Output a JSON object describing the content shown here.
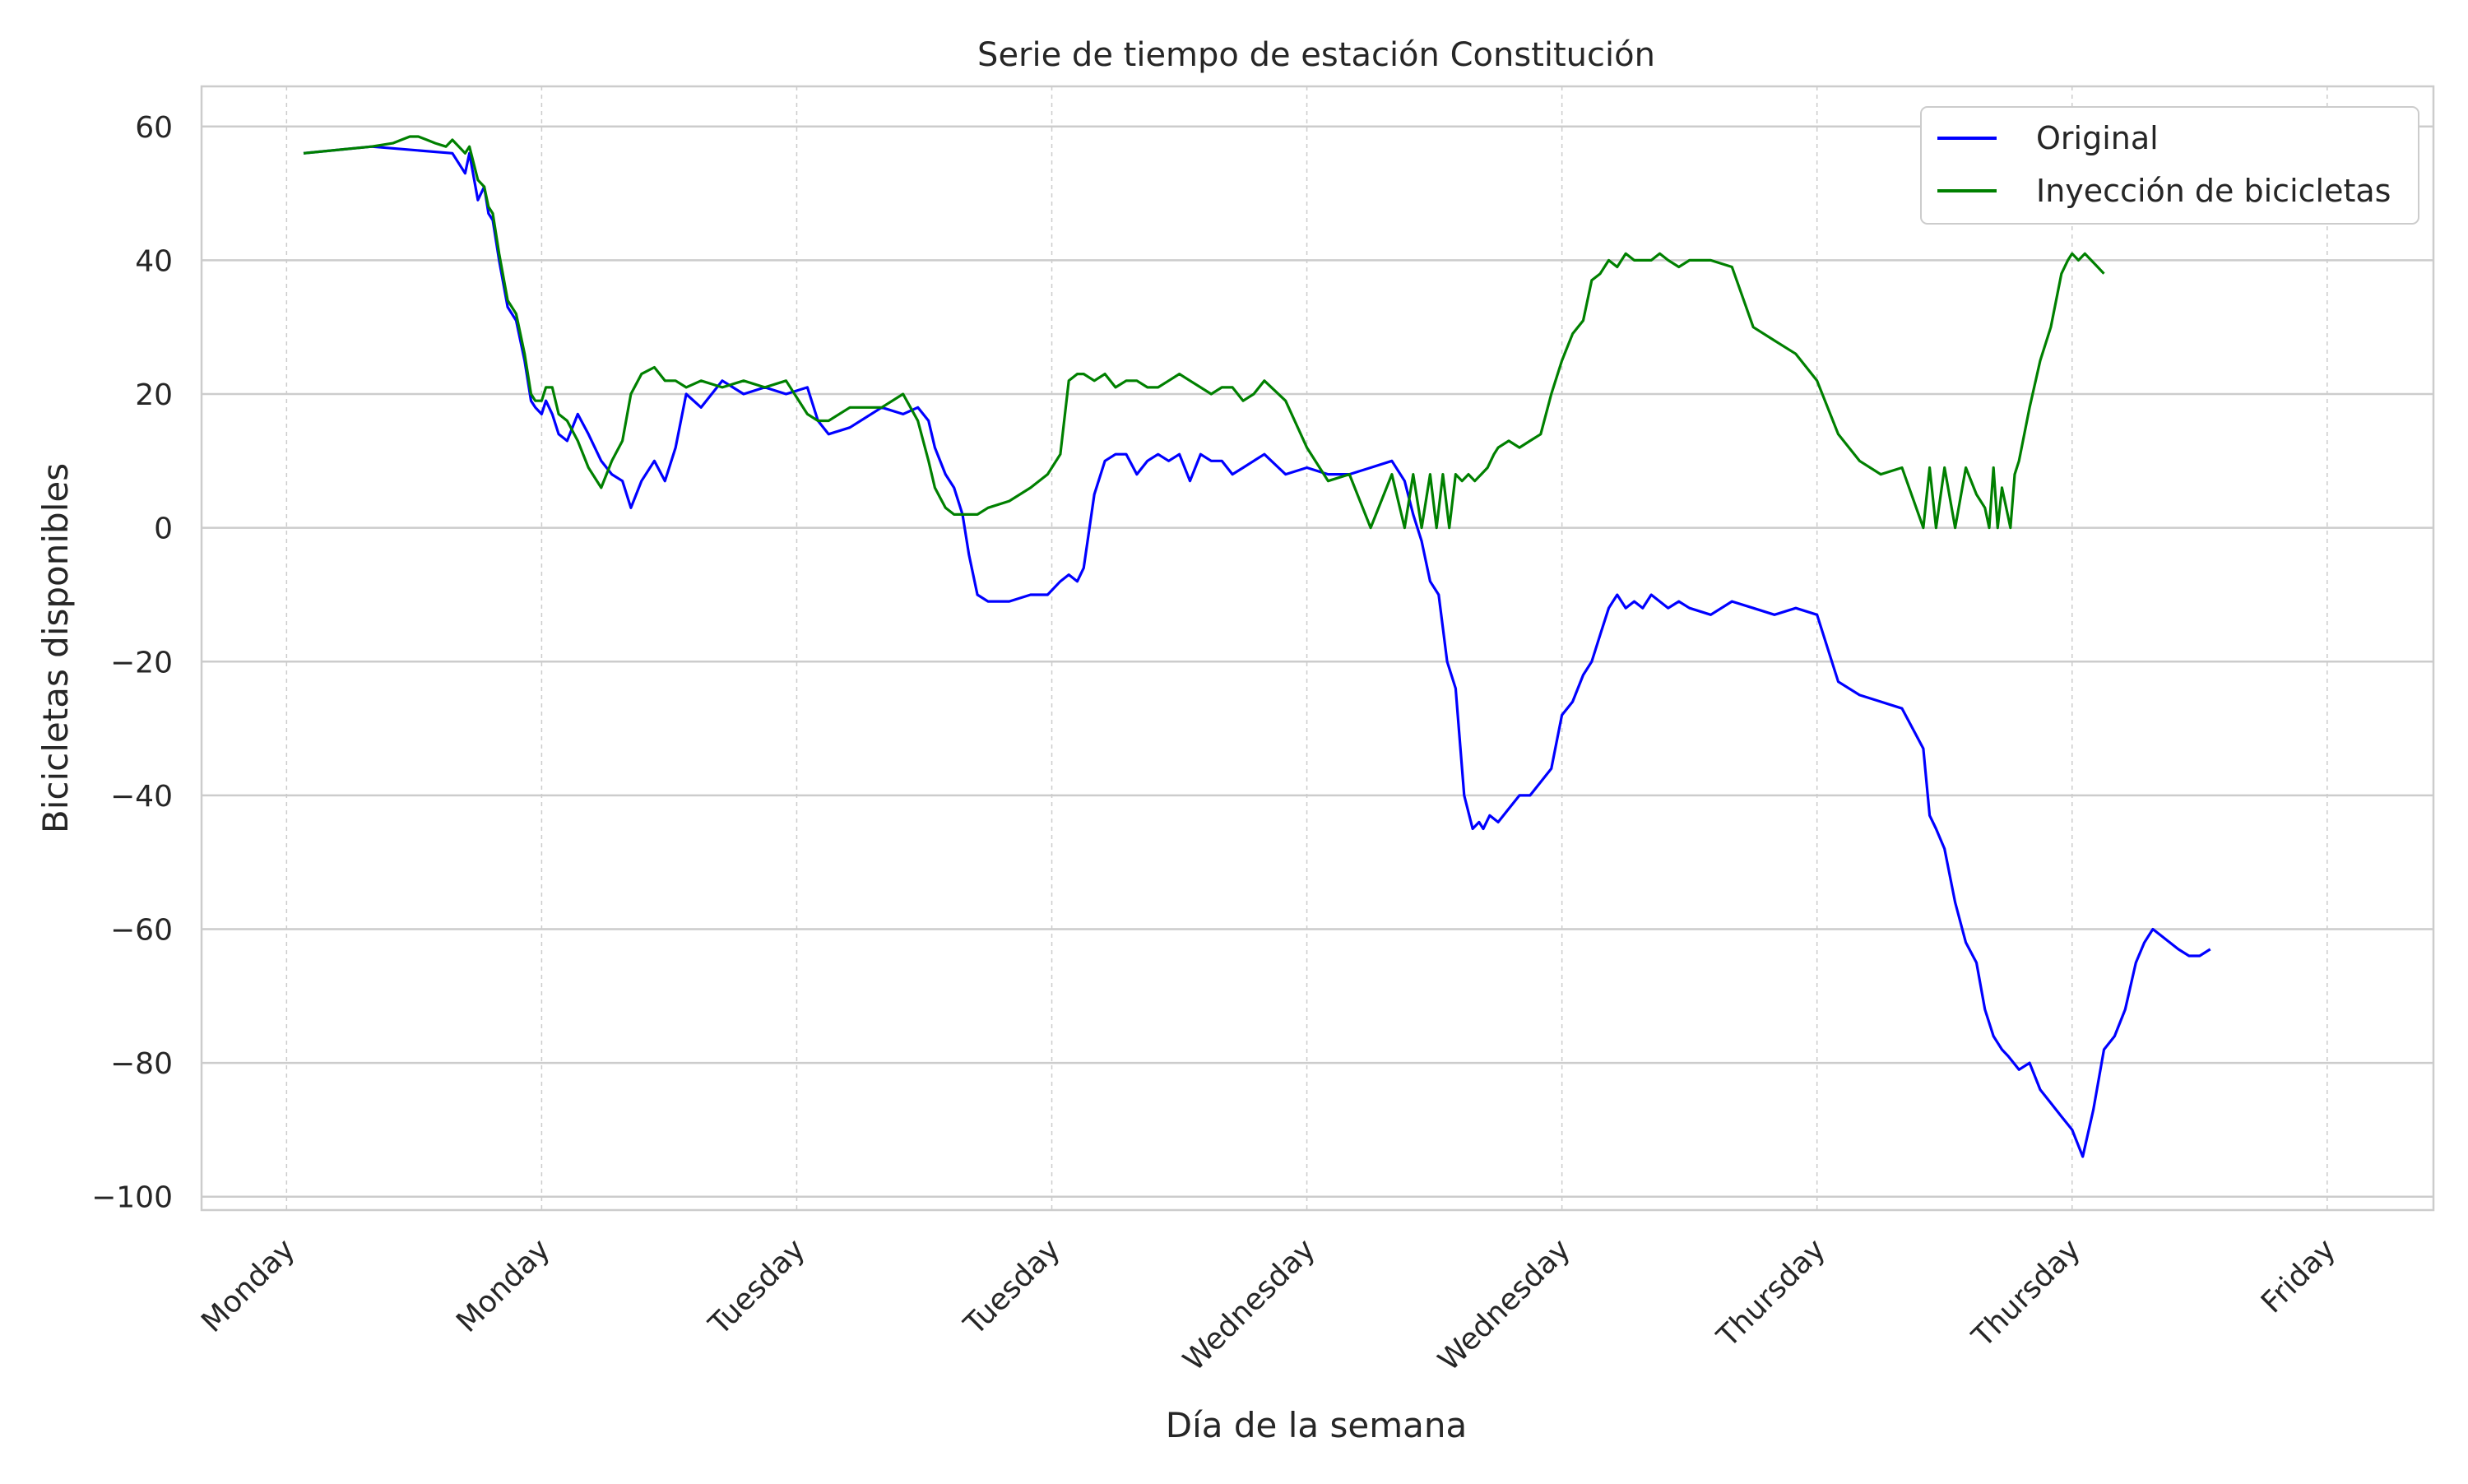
{
  "chart_data": {
    "type": "line",
    "title": "Serie de tiempo de estación  Constitución",
    "xlabel": "Día de la semana",
    "ylabel": "Bicicletas disponibles",
    "x_tick_labels": [
      "Monday",
      "Monday",
      "Tuesday",
      "Tuesday",
      "Wednesday",
      "Wednesday",
      "Thursday",
      "Thursday",
      "Friday"
    ],
    "x_tick_positions": [
      0,
      12,
      24,
      36,
      48,
      60,
      72,
      84,
      96
    ],
    "xlim": [
      -4,
      101
    ],
    "y_ticks": [
      60,
      40,
      20,
      0,
      -20,
      -40,
      -60,
      -80,
      -100
    ],
    "ylim": [
      -102,
      66
    ],
    "grid": true,
    "legend_position": "top-right",
    "series": [
      {
        "name": "Original",
        "color": "#0000ff",
        "x": [
          0.8,
          4,
          7.8,
          8.4,
          8.6,
          9,
          9.3,
          9.5,
          9.7,
          10,
          10.4,
          10.8,
          11.2,
          11.5,
          11.7,
          12,
          12.2,
          12.5,
          12.8,
          13.2,
          13.7,
          14.2,
          14.8,
          15.3,
          15.8,
          16.2,
          16.7,
          17.3,
          17.8,
          18.3,
          18.8,
          19.5,
          20.5,
          21.5,
          22.5,
          23.5,
          24.5,
          25,
          25.5,
          26.5,
          28,
          29,
          29.7,
          30.2,
          30.5,
          31,
          31.4,
          31.8,
          32.1,
          32.5,
          33,
          34,
          35,
          35.8,
          36.4,
          36.8,
          37.2,
          37.5,
          38,
          38.5,
          39,
          39.5,
          40,
          40.5,
          41,
          41.5,
          42,
          42.5,
          43,
          43.5,
          44,
          44.5,
          45,
          45.5,
          46,
          47,
          48,
          49,
          50,
          51,
          52,
          52.6,
          53,
          53.4,
          53.8,
          54.2,
          54.6,
          55,
          55.4,
          55.8,
          56.1,
          56.3,
          56.6,
          57,
          57.5,
          58,
          58.5,
          59,
          59.5,
          60,
          60.5,
          61,
          61.4,
          61.8,
          62.2,
          62.6,
          63,
          63.4,
          63.8,
          64.2,
          64.6,
          65,
          65.5,
          66,
          67,
          68,
          69,
          70,
          71,
          72,
          73,
          74,
          75,
          76,
          77,
          77.3,
          77.6,
          78,
          78.5,
          79,
          79.5,
          79.9,
          80.3,
          80.7,
          81,
          81.5,
          82,
          82.5,
          83,
          83.5,
          84,
          84.5,
          85,
          85.5,
          86,
          86.5,
          87,
          87.4,
          87.8,
          88.2,
          88.6,
          89,
          89.5,
          90,
          90.5,
          91,
          92,
          93,
          94,
          95,
          95.5,
          96,
          96.3
        ]
      },
      {
        "name": "Inyección de bicicletas",
        "color": "#008000",
        "x": [
          0.8,
          4,
          5,
          5.4,
          5.8,
          6.2,
          6.6,
          7,
          7.5,
          7.8,
          8.4,
          8.6,
          9,
          9.3,
          9.5,
          9.7,
          10,
          10.4,
          10.8,
          11.2,
          11.5,
          11.7,
          12,
          12.2,
          12.5,
          12.8,
          13.2,
          13.7,
          14.2,
          14.8,
          15.3,
          15.8,
          16.2,
          16.7,
          17.3,
          17.8,
          18.3,
          18.8,
          19.5,
          20.5,
          21.5,
          22.5,
          23.5,
          24.5,
          25,
          25.5,
          26.5,
          28,
          29,
          29.7,
          30.2,
          30.5,
          31,
          31.4,
          31.8,
          32.1,
          32.5,
          33,
          34,
          35,
          35.8,
          36.4,
          36.8,
          37.2,
          37.5,
          38,
          38.5,
          39,
          39.5,
          40,
          40.5,
          41,
          41.5,
          42,
          42.5,
          43,
          43.5,
          44,
          44.5,
          45,
          45.5,
          46,
          47,
          48,
          49,
          50,
          51,
          52,
          52.6,
          53,
          53.4,
          53.8,
          54.1,
          54.4,
          54.7,
          55,
          55.3,
          55.6,
          55.9,
          56.2,
          56.5,
          56.8,
          57,
          57.5,
          58,
          58.5,
          59,
          59.5,
          60,
          60.5,
          61,
          61.4,
          61.8,
          62.2,
          62.6,
          63,
          63.4,
          63.8,
          64.2,
          64.6,
          65,
          65.5,
          66,
          67,
          68,
          69,
          70,
          71,
          72,
          73,
          74,
          75,
          76,
          77,
          77.3,
          77.6,
          78,
          78.5,
          79,
          79.5,
          79.9,
          80.1,
          80.3,
          80.5,
          80.7,
          80.9,
          81.1,
          81.3,
          81.5,
          82,
          82.5,
          83,
          83.5,
          83.8,
          84,
          84.3,
          84.6,
          84.9,
          85.2,
          85.5,
          85.8,
          86.1,
          86.4,
          86.5,
          87,
          87.4,
          87.8,
          88.2,
          88.6,
          89,
          89.5,
          90,
          90.5,
          91,
          92,
          93,
          94,
          95,
          95.5,
          96,
          96.3
        ]
      }
    ]
  }
}
